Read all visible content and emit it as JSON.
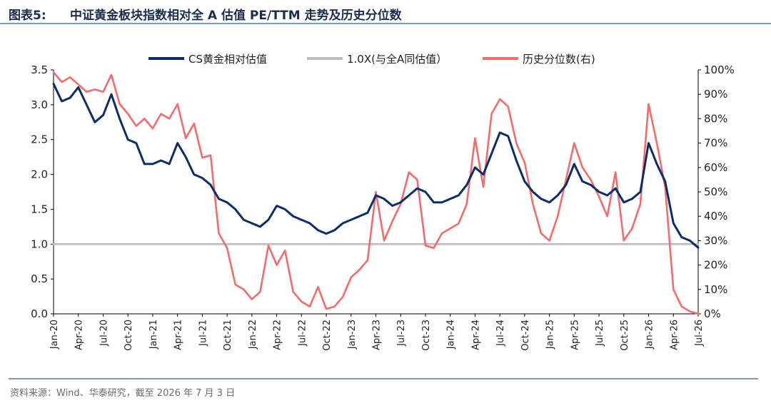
{
  "header": {
    "label": "图表5:",
    "title": "中证黄金板块指数相对全 A 估值 PE/TTM 走势及历史分位数"
  },
  "footer": {
    "source": "资料来源：Wind、华泰研究，截至 2026 年 7 月 3 日"
  },
  "chart_data": {
    "type": "line",
    "x_start": "2020-01",
    "x_end": "2026-07",
    "x_tick_labels": [
      "Jan-20",
      "Apr-20",
      "Jul-20",
      "Oct-20",
      "Jan-21",
      "Apr-21",
      "Jul-21",
      "Oct-21",
      "Jan-22",
      "Apr-22",
      "Jul-22",
      "Oct-22",
      "Jan-23",
      "Apr-23",
      "Jul-23",
      "Oct-23",
      "Jan-24",
      "Apr-24",
      "Jul-24",
      "Oct-24",
      "Jan-25",
      "Apr-25",
      "Jul-25",
      "Oct-25",
      "Jan-26",
      "Apr-26",
      "Jul-26"
    ],
    "y_left": {
      "ylim": [
        0,
        3.5
      ],
      "ticks": [
        "0.0",
        "0.5",
        "1.0",
        "1.5",
        "2.0",
        "2.5",
        "3.0",
        "3.5"
      ]
    },
    "y_right": {
      "ylim": [
        0,
        100
      ],
      "ticks": [
        "0%",
        "10%",
        "20%",
        "30%",
        "40%",
        "50%",
        "60%",
        "70%",
        "80%",
        "90%",
        "100%"
      ]
    },
    "legend_position": "top",
    "series": [
      {
        "name": "CS黄金相对估值",
        "axis": "left",
        "color": "#0c2d6b",
        "points": [
          [
            "2020-01",
            3.3
          ],
          [
            "2020-02",
            3.05
          ],
          [
            "2020-03",
            3.1
          ],
          [
            "2020-04",
            3.25
          ],
          [
            "2020-05",
            3.0
          ],
          [
            "2020-06",
            2.75
          ],
          [
            "2020-07",
            2.85
          ],
          [
            "2020-08",
            3.15
          ],
          [
            "2020-09",
            2.8
          ],
          [
            "2020-10",
            2.5
          ],
          [
            "2020-11",
            2.45
          ],
          [
            "2020-12",
            2.15
          ],
          [
            "2021-01",
            2.15
          ],
          [
            "2021-02",
            2.2
          ],
          [
            "2021-03",
            2.15
          ],
          [
            "2021-04",
            2.45
          ],
          [
            "2021-05",
            2.25
          ],
          [
            "2021-06",
            2.0
          ],
          [
            "2021-07",
            1.95
          ],
          [
            "2021-08",
            1.85
          ],
          [
            "2021-09",
            1.65
          ],
          [
            "2021-10",
            1.6
          ],
          [
            "2021-11",
            1.5
          ],
          [
            "2021-12",
            1.35
          ],
          [
            "2022-01",
            1.3
          ],
          [
            "2022-02",
            1.25
          ],
          [
            "2022-03",
            1.35
          ],
          [
            "2022-04",
            1.55
          ],
          [
            "2022-05",
            1.5
          ],
          [
            "2022-06",
            1.4
          ],
          [
            "2022-07",
            1.35
          ],
          [
            "2022-08",
            1.3
          ],
          [
            "2022-09",
            1.2
          ],
          [
            "2022-10",
            1.15
          ],
          [
            "2022-11",
            1.2
          ],
          [
            "2022-12",
            1.3
          ],
          [
            "2023-01",
            1.35
          ],
          [
            "2023-02",
            1.4
          ],
          [
            "2023-03",
            1.45
          ],
          [
            "2023-04",
            1.7
          ],
          [
            "2023-05",
            1.65
          ],
          [
            "2023-06",
            1.55
          ],
          [
            "2023-07",
            1.6
          ],
          [
            "2023-08",
            1.7
          ],
          [
            "2023-09",
            1.8
          ],
          [
            "2023-10",
            1.75
          ],
          [
            "2023-11",
            1.6
          ],
          [
            "2023-12",
            1.6
          ],
          [
            "2024-01",
            1.65
          ],
          [
            "2024-02",
            1.7
          ],
          [
            "2024-03",
            1.85
          ],
          [
            "2024-04",
            2.1
          ],
          [
            "2024-05",
            2.0
          ],
          [
            "2024-06",
            2.3
          ],
          [
            "2024-07",
            2.6
          ],
          [
            "2024-08",
            2.55
          ],
          [
            "2024-09",
            2.2
          ],
          [
            "2024-10",
            1.9
          ],
          [
            "2024-11",
            1.75
          ],
          [
            "2024-12",
            1.65
          ],
          [
            "2025-01",
            1.6
          ],
          [
            "2025-02",
            1.7
          ],
          [
            "2025-03",
            1.85
          ],
          [
            "2025-04",
            2.15
          ],
          [
            "2025-05",
            1.9
          ],
          [
            "2025-06",
            1.85
          ],
          [
            "2025-07",
            1.75
          ],
          [
            "2025-08",
            1.7
          ],
          [
            "2025-09",
            1.8
          ],
          [
            "2025-10",
            1.6
          ],
          [
            "2025-11",
            1.65
          ],
          [
            "2025-12",
            1.75
          ],
          [
            "2026-01",
            2.45
          ],
          [
            "2026-02",
            2.15
          ],
          [
            "2026-03",
            1.9
          ],
          [
            "2026-04",
            1.3
          ],
          [
            "2026-05",
            1.1
          ],
          [
            "2026-06",
            1.05
          ],
          [
            "2026-07",
            0.95
          ]
        ]
      },
      {
        "name": "1.0X(与全A同估值）",
        "axis": "left",
        "color": "#bdbdbd",
        "points": [
          [
            "2020-01",
            1.0
          ],
          [
            "2026-07",
            1.0
          ]
        ]
      },
      {
        "name": "历史分位数(右)",
        "axis": "right",
        "color": "#f36b6b",
        "points": [
          [
            "2020-01",
            99
          ],
          [
            "2020-02",
            95
          ],
          [
            "2020-03",
            97
          ],
          [
            "2020-04",
            94
          ],
          [
            "2020-05",
            91
          ],
          [
            "2020-06",
            92
          ],
          [
            "2020-07",
            91
          ],
          [
            "2020-08",
            98
          ],
          [
            "2020-09",
            86
          ],
          [
            "2020-10",
            82
          ],
          [
            "2020-11",
            77
          ],
          [
            "2020-12",
            80
          ],
          [
            "2021-01",
            76
          ],
          [
            "2021-02",
            82
          ],
          [
            "2021-03",
            80
          ],
          [
            "2021-04",
            86
          ],
          [
            "2021-05",
            72
          ],
          [
            "2021-06",
            78
          ],
          [
            "2021-07",
            64
          ],
          [
            "2021-08",
            65
          ],
          [
            "2021-09",
            33
          ],
          [
            "2021-10",
            27
          ],
          [
            "2021-11",
            12
          ],
          [
            "2021-12",
            10
          ],
          [
            "2022-01",
            6
          ],
          [
            "2022-02",
            9
          ],
          [
            "2022-03",
            28
          ],
          [
            "2022-04",
            20
          ],
          [
            "2022-05",
            26
          ],
          [
            "2022-06",
            9
          ],
          [
            "2022-07",
            5
          ],
          [
            "2022-08",
            3
          ],
          [
            "2022-09",
            11
          ],
          [
            "2022-10",
            2
          ],
          [
            "2022-11",
            3
          ],
          [
            "2022-12",
            7
          ],
          [
            "2023-01",
            15
          ],
          [
            "2023-02",
            18
          ],
          [
            "2023-03",
            22
          ],
          [
            "2023-04",
            50
          ],
          [
            "2023-05",
            30
          ],
          [
            "2023-06",
            38
          ],
          [
            "2023-07",
            45
          ],
          [
            "2023-08",
            58
          ],
          [
            "2023-09",
            55
          ],
          [
            "2023-10",
            28
          ],
          [
            "2023-11",
            27
          ],
          [
            "2023-12",
            33
          ],
          [
            "2024-01",
            35
          ],
          [
            "2024-02",
            37
          ],
          [
            "2024-03",
            45
          ],
          [
            "2024-04",
            72
          ],
          [
            "2024-05",
            52
          ],
          [
            "2024-06",
            82
          ],
          [
            "2024-07",
            88
          ],
          [
            "2024-08",
            85
          ],
          [
            "2024-09",
            70
          ],
          [
            "2024-10",
            62
          ],
          [
            "2024-11",
            45
          ],
          [
            "2024-12",
            33
          ],
          [
            "2025-01",
            30
          ],
          [
            "2025-02",
            40
          ],
          [
            "2025-03",
            55
          ],
          [
            "2025-04",
            70
          ],
          [
            "2025-05",
            60
          ],
          [
            "2025-06",
            55
          ],
          [
            "2025-07",
            48
          ],
          [
            "2025-08",
            40
          ],
          [
            "2025-09",
            58
          ],
          [
            "2025-10",
            30
          ],
          [
            "2025-11",
            35
          ],
          [
            "2025-12",
            45
          ],
          [
            "2026-01",
            86
          ],
          [
            "2026-02",
            70
          ],
          [
            "2026-03",
            52
          ],
          [
            "2026-04",
            10
          ],
          [
            "2026-05",
            3
          ],
          [
            "2026-06",
            1
          ],
          [
            "2026-07",
            0
          ]
        ]
      }
    ]
  }
}
